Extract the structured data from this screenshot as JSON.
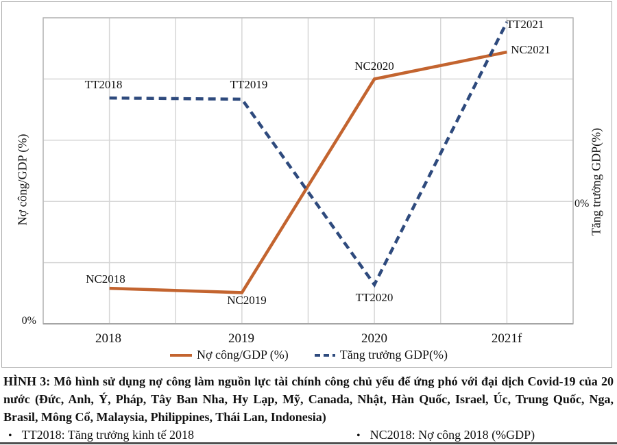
{
  "chart_data": {
    "type": "line",
    "categories": [
      "2018",
      "2019",
      "2020",
      "2021f"
    ],
    "series": [
      {
        "name": "Nợ công/GDP (%)",
        "axis": "left",
        "line_style": "solid",
        "color": "#C3642F",
        "point_labels": [
          "NC2018",
          "NC2019",
          "NC2020",
          "NC2021"
        ],
        "values_gridline_units": [
          0.58,
          0.51,
          4.0,
          4.44
        ]
      },
      {
        "name": "Tăng trưởng GDP(%)",
        "axis": "right",
        "line_style": "dashed",
        "color": "#2E4A7D",
        "point_labels": [
          "TT2018",
          "TT2019",
          "TT2020",
          "TT2021"
        ],
        "values_gridline_units": [
          1.69,
          1.67,
          -1.36,
          2.93
        ]
      }
    ],
    "left_axis": {
      "title": "Nợ công/GDP (%)",
      "zero_label": "0%",
      "range_units": [
        0,
        5
      ]
    },
    "right_axis": {
      "title": "Tăng trưởng GDP(%)",
      "zero_label": "0%",
      "range_units": [
        -2,
        3
      ]
    },
    "grid": true,
    "legend_position": "bottom",
    "note": "Axes show only a 0% reference; values estimated in gridline units from plot geometry"
  },
  "caption": {
    "lines": [
      "HÌNH 3: Mô hình sử dụng nợ công làm nguồn lực tài chính công chủ yếu để ứng phó với đại dịch Covid-19 của 20",
      "nước (Đức, Anh, Ý, Pháp, Tây Ban Nha, Hy Lạp, Mỹ, Canada, Nhật, Hàn Quốc, Israel, Úc, Trung Quốc, Nga,",
      "Brasil, Mông Cổ, Malaysia, Philippines, Thái Lan, Indonesia)"
    ]
  },
  "footnotes": {
    "bullet": "•",
    "items": [
      {
        "text": "TT2018: Tăng trưởng kinh tế 2018"
      },
      {
        "text": "NC2018: Nợ công 2018 (%GDP)"
      }
    ]
  },
  "colors": {
    "gridline": "#D6D6D6",
    "plot_border": "#B8B8B8",
    "figure_border": "#A9A9A9",
    "bottom_rule": "#4F4F4F"
  }
}
